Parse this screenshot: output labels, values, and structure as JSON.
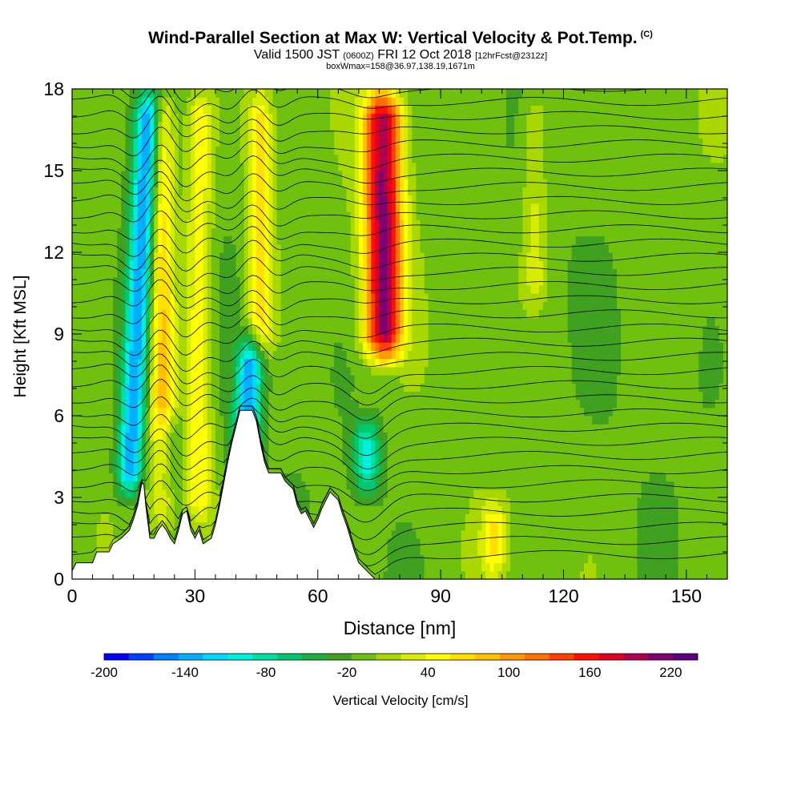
{
  "title": "Wind-Parallel Section at Max W: Vertical Velocity & Pot.Temp.",
  "title_mark": "(C)",
  "subtitle": {
    "main": "Valid 1500 JST",
    "zulu": "(0600Z)",
    "date": "FRI 12 Oct 2018",
    "fcst": "[12hrFcst@2312z]"
  },
  "box_note": "boxWmax=158@36.97,138.19,1671m",
  "chart_data": {
    "type": "heatmap",
    "xlabel": "Distance [nm]",
    "ylabel": "Height [Kft MSL]",
    "xlim": [
      0,
      160
    ],
    "ylim": [
      0,
      18
    ],
    "x_ticks": [
      0,
      30,
      60,
      90,
      120,
      150
    ],
    "y_ticks": [
      0,
      3,
      6,
      9,
      12,
      15,
      18
    ],
    "colorbar": {
      "label": "Vertical Velocity [cm/s]",
      "tick_labels": [
        -200,
        -140,
        -80,
        -20,
        40,
        100,
        160,
        220
      ],
      "range": [
        -200,
        240
      ],
      "step": 20,
      "colors": [
        "#0000ff",
        "#0040ff",
        "#0080ff",
        "#00b0ff",
        "#00d8ff",
        "#00f0e0",
        "#00e0a0",
        "#00c870",
        "#20b040",
        "#40a020",
        "#70c010",
        "#a8d800",
        "#d8ec00",
        "#ffff00",
        "#ffe000",
        "#ffc000",
        "#ff9800",
        "#ff7000",
        "#ff4000",
        "#ff1000",
        "#e00020",
        "#b00050",
        "#800070",
        "#600080"
      ]
    },
    "terrain_heights_kft": [
      [
        0,
        0.3
      ],
      [
        1,
        0.6
      ],
      [
        5,
        0.6
      ],
      [
        6,
        1.0
      ],
      [
        9,
        1.0
      ],
      [
        10,
        1.3
      ],
      [
        12,
        1.5
      ],
      [
        14,
        1.8
      ],
      [
        15,
        2.2
      ],
      [
        16,
        2.7
      ],
      [
        17,
        3.5
      ],
      [
        17.5,
        3.5
      ],
      [
        18,
        2.7
      ],
      [
        19,
        1.5
      ],
      [
        20,
        1.5
      ],
      [
        21,
        1.8
      ],
      [
        22,
        2.0
      ],
      [
        23,
        1.8
      ],
      [
        24,
        1.5
      ],
      [
        25,
        1.3
      ],
      [
        26,
        1.8
      ],
      [
        27,
        2.4
      ],
      [
        28,
        2.5
      ],
      [
        29,
        1.8
      ],
      [
        30,
        1.5
      ],
      [
        31,
        1.8
      ],
      [
        32,
        1.3
      ],
      [
        34,
        1.5
      ],
      [
        35,
        2.0
      ],
      [
        36,
        2.7
      ],
      [
        37,
        3.5
      ],
      [
        38,
        4.3
      ],
      [
        39,
        5.0
      ],
      [
        40,
        5.6
      ],
      [
        41,
        6.2
      ],
      [
        44,
        6.2
      ],
      [
        45,
        5.8
      ],
      [
        46,
        5.0
      ],
      [
        47,
        4.3
      ],
      [
        48,
        3.9
      ],
      [
        51,
        3.9
      ],
      [
        52,
        3.6
      ],
      [
        54,
        3.3
      ],
      [
        55,
        2.7
      ],
      [
        56,
        2.4
      ],
      [
        57,
        2.5
      ],
      [
        58,
        2.2
      ],
      [
        59,
        1.9
      ],
      [
        60,
        2.2
      ],
      [
        61,
        2.6
      ],
      [
        62,
        2.9
      ],
      [
        63,
        3.2
      ],
      [
        65,
        2.9
      ],
      [
        66,
        2.4
      ],
      [
        67,
        2.0
      ],
      [
        68,
        1.5
      ],
      [
        69,
        1.0
      ],
      [
        70,
        0.6
      ],
      [
        72,
        0.3
      ],
      [
        74,
        0.0
      ],
      [
        160,
        0.0
      ]
    ],
    "velocity_features": [
      {
        "label": "strong downdraft",
        "x_nm": 19,
        "top_kft": 18,
        "bottom_kft": 3,
        "peak_cm_s": -150
      },
      {
        "label": "updraft",
        "x_nm": 22,
        "top_kft": 18,
        "bottom_kft": 2,
        "peak_cm_s": 90
      },
      {
        "label": "updraft",
        "x_nm": 31,
        "top_kft": 18,
        "bottom_kft": 2,
        "peak_cm_s": 70
      },
      {
        "label": "downdraft",
        "x_nm": 28,
        "top_kft": 6,
        "bottom_kft": 2.5,
        "peak_cm_s": -60
      },
      {
        "label": "downdraft",
        "x_nm": 47,
        "top_kft": 9,
        "bottom_kft": 4,
        "peak_cm_s": -140
      },
      {
        "label": "updraft",
        "x_nm": 46,
        "top_kft": 18,
        "bottom_kft": 8,
        "peak_cm_s": 80
      },
      {
        "label": "strong updraft core",
        "x_nm": 76,
        "top_kft": 18,
        "bottom_kft": 8,
        "peak_cm_s": 230
      },
      {
        "label": "downdraft",
        "x_nm": 72,
        "top_kft": 6,
        "bottom_kft": 3,
        "peak_cm_s": -100
      },
      {
        "label": "updraft",
        "x_nm": 103,
        "top_kft": 3,
        "bottom_kft": 0,
        "peak_cm_s": 70
      },
      {
        "label": "updraft",
        "x_nm": 113,
        "top_kft": 18,
        "bottom_kft": 10,
        "peak_cm_s": 40
      }
    ]
  }
}
